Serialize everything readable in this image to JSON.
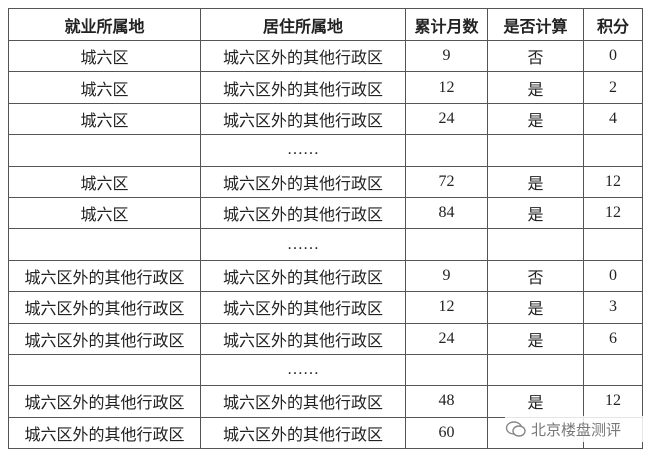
{
  "table": {
    "header": [
      "就业所属地",
      "居住所属地",
      "累计月数",
      "是否计算",
      "积分"
    ],
    "rows": [
      [
        "城六区",
        "城六区外的其他行政区",
        "9",
        "否",
        "0"
      ],
      [
        "城六区",
        "城六区外的其他行政区",
        "12",
        "是",
        "2"
      ],
      [
        "城六区",
        "城六区外的其他行政区",
        "24",
        "是",
        "4"
      ],
      [
        null,
        "……",
        null,
        null,
        null
      ],
      [
        "城六区",
        "城六区外的其他行政区",
        "72",
        "是",
        "12"
      ],
      [
        "城六区",
        "城六区外的其他行政区",
        "84",
        "是",
        "12"
      ],
      [
        null,
        "……",
        null,
        null,
        null
      ],
      [
        "城六区外的其他行政区",
        "城六区外的其他行政区",
        "9",
        "否",
        "0"
      ],
      [
        "城六区外的其他行政区",
        "城六区外的其他行政区",
        "12",
        "是",
        "3"
      ],
      [
        "城六区外的其他行政区",
        "城六区外的其他行政区",
        "24",
        "是",
        "6"
      ],
      [
        null,
        "……",
        null,
        null,
        null
      ],
      [
        "城六区外的其他行政区",
        "城六区外的其他行政区",
        "48",
        "是",
        "12"
      ],
      [
        "城六区外的其他行政区",
        "城六区外的其他行政区",
        "60",
        null,
        null
      ]
    ]
  },
  "watermark": "北京楼盘测评"
}
